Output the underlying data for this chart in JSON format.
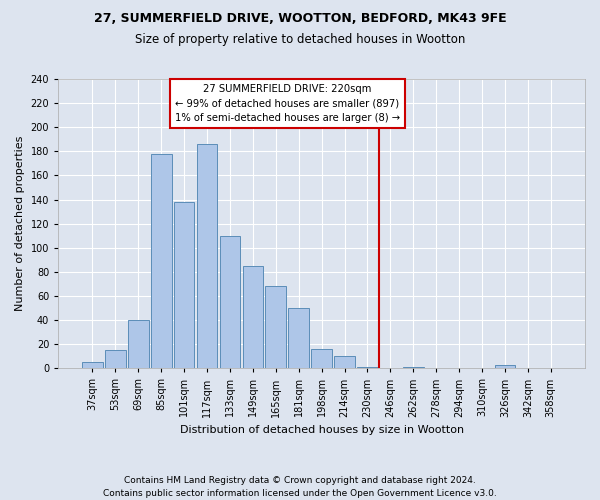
{
  "title1": "27, SUMMERFIELD DRIVE, WOOTTON, BEDFORD, MK43 9FE",
  "title2": "Size of property relative to detached houses in Wootton",
  "xlabel": "Distribution of detached houses by size in Wootton",
  "ylabel": "Number of detached properties",
  "categories": [
    "37sqm",
    "53sqm",
    "69sqm",
    "85sqm",
    "101sqm",
    "117sqm",
    "133sqm",
    "149sqm",
    "165sqm",
    "181sqm",
    "198sqm",
    "214sqm",
    "230sqm",
    "246sqm",
    "262sqm",
    "278sqm",
    "294sqm",
    "310sqm",
    "326sqm",
    "342sqm",
    "358sqm"
  ],
  "values": [
    5,
    15,
    40,
    178,
    138,
    186,
    110,
    85,
    68,
    50,
    16,
    10,
    1,
    0,
    1,
    0,
    0,
    0,
    3,
    0,
    0
  ],
  "bar_color": "#aec6e8",
  "bar_edge_color": "#5b8db8",
  "vline_pos": 12.5,
  "annotation_text": "27 SUMMERFIELD DRIVE: 220sqm\n← 99% of detached houses are smaller (897)\n1% of semi-detached houses are larger (8) →",
  "annotation_box_color": "#ffffff",
  "annotation_box_edge_color": "#cc0000",
  "vline_color": "#cc0000",
  "footer1": "Contains HM Land Registry data © Crown copyright and database right 2024.",
  "footer2": "Contains public sector information licensed under the Open Government Licence v3.0.",
  "bg_color": "#dde4ef",
  "ylim_max": 240,
  "yticks": [
    0,
    20,
    40,
    60,
    80,
    100,
    120,
    140,
    160,
    180,
    200,
    220,
    240
  ],
  "title1_fontsize": 9,
  "title2_fontsize": 8.5,
  "ylabel_fontsize": 8,
  "xlabel_fontsize": 8,
  "tick_fontsize": 7,
  "footer_fontsize": 6.5
}
